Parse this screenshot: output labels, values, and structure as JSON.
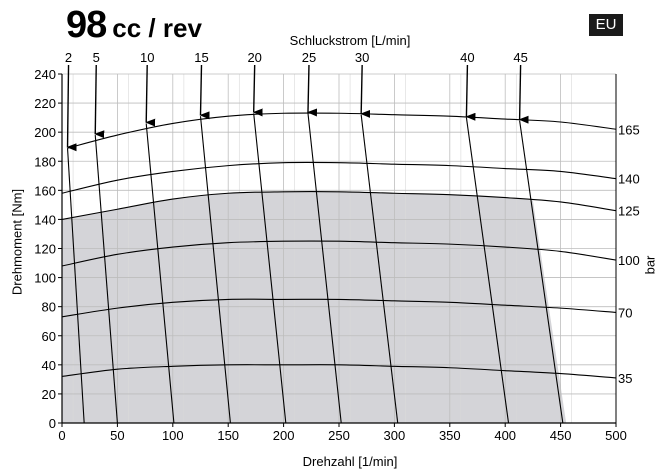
{
  "header": {
    "title_value": "98",
    "title_unit": "cc / rev",
    "badge": "EU"
  },
  "chart_data": {
    "type": "line",
    "title": "98 cc / rev",
    "xlabel": "Drehzahl [1/min]",
    "ylabel": "Drehmoment [Nm]",
    "top_axis_label": "Schluckstrom [L/min]",
    "right_axis_label": "bar",
    "xlim": [
      0,
      500
    ],
    "ylim": [
      0,
      240
    ],
    "x_ticks": [
      0,
      50,
      100,
      150,
      200,
      250,
      300,
      350,
      400,
      450,
      500
    ],
    "y_ticks": [
      0,
      20,
      40,
      60,
      80,
      100,
      120,
      140,
      160,
      180,
      200,
      220,
      240
    ],
    "grid": true,
    "pressure_curves": [
      {
        "label": "165",
        "points": [
          [
            5,
            189
          ],
          [
            50,
            198
          ],
          [
            100,
            206
          ],
          [
            150,
            211
          ],
          [
            200,
            213
          ],
          [
            250,
            213
          ],
          [
            300,
            212
          ],
          [
            350,
            211
          ],
          [
            400,
            209
          ],
          [
            450,
            207
          ],
          [
            500,
            202
          ]
        ]
      },
      {
        "label": "140",
        "points": [
          [
            0,
            158
          ],
          [
            50,
            167
          ],
          [
            100,
            173
          ],
          [
            150,
            177
          ],
          [
            200,
            179
          ],
          [
            250,
            179
          ],
          [
            300,
            178
          ],
          [
            350,
            177
          ],
          [
            400,
            175
          ],
          [
            450,
            173
          ],
          [
            500,
            168
          ]
        ]
      },
      {
        "label": "125",
        "points": [
          [
            0,
            140
          ],
          [
            50,
            147
          ],
          [
            100,
            154
          ],
          [
            150,
            158
          ],
          [
            200,
            159
          ],
          [
            250,
            159
          ],
          [
            300,
            158
          ],
          [
            350,
            157
          ],
          [
            400,
            155
          ],
          [
            450,
            152
          ],
          [
            500,
            146
          ]
        ]
      },
      {
        "label": "100",
        "points": [
          [
            0,
            108
          ],
          [
            50,
            116
          ],
          [
            100,
            121
          ],
          [
            150,
            124
          ],
          [
            200,
            125
          ],
          [
            250,
            125
          ],
          [
            300,
            124
          ],
          [
            350,
            123
          ],
          [
            400,
            121
          ],
          [
            450,
            118
          ],
          [
            500,
            112
          ]
        ]
      },
      {
        "label": "70",
        "points": [
          [
            0,
            73
          ],
          [
            50,
            79
          ],
          [
            100,
            83
          ],
          [
            150,
            85
          ],
          [
            200,
            85
          ],
          [
            250,
            85
          ],
          [
            300,
            84
          ],
          [
            350,
            83
          ],
          [
            400,
            81
          ],
          [
            450,
            79
          ],
          [
            500,
            76
          ]
        ]
      },
      {
        "label": "35",
        "points": [
          [
            0,
            32
          ],
          [
            50,
            37
          ],
          [
            100,
            39
          ],
          [
            150,
            40
          ],
          [
            200,
            40
          ],
          [
            250,
            40
          ],
          [
            300,
            39
          ],
          [
            350,
            38
          ],
          [
            400,
            36
          ],
          [
            450,
            34
          ],
          [
            500,
            31
          ]
        ]
      }
    ],
    "flow_lines": [
      {
        "label": "2",
        "top": [
          5,
          189
        ],
        "bottom": [
          20,
          0
        ]
      },
      {
        "label": "5",
        "top": [
          30,
          198
        ],
        "bottom": [
          50,
          0
        ]
      },
      {
        "label": "10",
        "top": [
          76,
          206
        ],
        "bottom": [
          101,
          0
        ]
      },
      {
        "label": "15",
        "top": [
          125,
          211
        ],
        "bottom": [
          152,
          0
        ]
      },
      {
        "label": "20",
        "top": [
          173,
          213
        ],
        "bottom": [
          202,
          0
        ]
      },
      {
        "label": "25",
        "top": [
          222,
          213
        ],
        "bottom": [
          252,
          0
        ]
      },
      {
        "label": "30",
        "top": [
          270,
          212
        ],
        "bottom": [
          303,
          0
        ]
      },
      {
        "label": "40",
        "top": [
          365,
          210
        ],
        "bottom": [
          403,
          0
        ]
      },
      {
        "label": "45",
        "top": [
          413,
          208
        ],
        "bottom": [
          452,
          0
        ]
      }
    ],
    "continuous_region": [
      [
        0,
        0
      ],
      [
        0,
        140
      ],
      [
        50,
        147
      ],
      [
        100,
        154
      ],
      [
        150,
        158
      ],
      [
        200,
        159
      ],
      [
        250,
        159
      ],
      [
        300,
        158
      ],
      [
        350,
        157
      ],
      [
        400,
        155
      ],
      [
        425,
        153
      ],
      [
        455,
        0
      ]
    ],
    "region_fill": "#d4d4d8"
  }
}
